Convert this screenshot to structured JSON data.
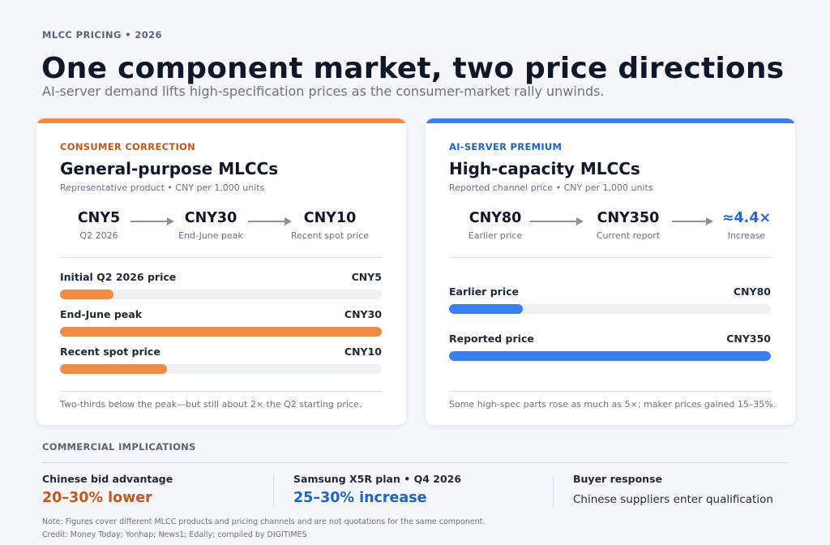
{
  "header": {
    "eyebrow": "MLCC PRICING • 2026",
    "title": "One component market, two price directions",
    "subtitle": "AI-server demand lifts high-specification prices as the consumer-market rally unwinds."
  },
  "consumer": {
    "tag": "CONSUMER CORRECTION",
    "title": "General-purpose MLCCs",
    "meta": "Representative product • CNY per 1,000 units",
    "flow": [
      {
        "value": "CNY5",
        "label": "Q2 2026"
      },
      {
        "value": "CNY30",
        "label": "End-June peak"
      },
      {
        "value": "CNY10",
        "label": "Recent spot price"
      }
    ],
    "bars": [
      {
        "label": "Initial Q2 2026 price",
        "value_text": "CNY5",
        "value": 5
      },
      {
        "label": "End-June peak",
        "value_text": "CNY30",
        "value": 30
      },
      {
        "label": "Recent spot price",
        "value_text": "CNY10",
        "value": 10
      }
    ],
    "bar_max": 30,
    "footnote": "Two-thirds below the peak—but still about 2× the Q2 starting price."
  },
  "server": {
    "tag": "AI-SERVER PREMIUM",
    "title": "High-capacity MLCCs",
    "meta": "Reported channel price • CNY per 1,000 units",
    "flow": [
      {
        "value": "CNY80",
        "label": "Earlier price"
      },
      {
        "value": "CNY350",
        "label": "Current report"
      },
      {
        "value": "≈4.4×",
        "label": "Increase"
      }
    ],
    "bars": [
      {
        "label": "Earlier price",
        "value_text": "CNY80",
        "value": 80
      },
      {
        "label": "Reported price",
        "value_text": "CNY350",
        "value": 350
      }
    ],
    "bar_max": 350,
    "footnote": "Some high-spec parts rose as much as 5×; maker prices gained 15–35%."
  },
  "implications": {
    "heading": "COMMERCIAL IMPLICATIONS",
    "columns": [
      {
        "label": "Chinese bid advantage",
        "value": "20–30% lower"
      },
      {
        "label": "Samsung X5R plan • Q4 2026",
        "value": "25–30% increase"
      },
      {
        "label": "Buyer response",
        "value": "Chinese suppliers enter qualification"
      }
    ]
  },
  "notes": {
    "note": "Note: Figures cover different MLCC products and pricing channels and are not quotations for the same component.",
    "credit": "Credit: Money Today; Yonhap; News1; Edaily; compiled by DIGITIMES"
  },
  "colors": {
    "consumer_accent": "#f28c45",
    "server_accent": "#3a7ff2",
    "consumer_text": "#c8561a",
    "server_text": "#1e63c9"
  }
}
